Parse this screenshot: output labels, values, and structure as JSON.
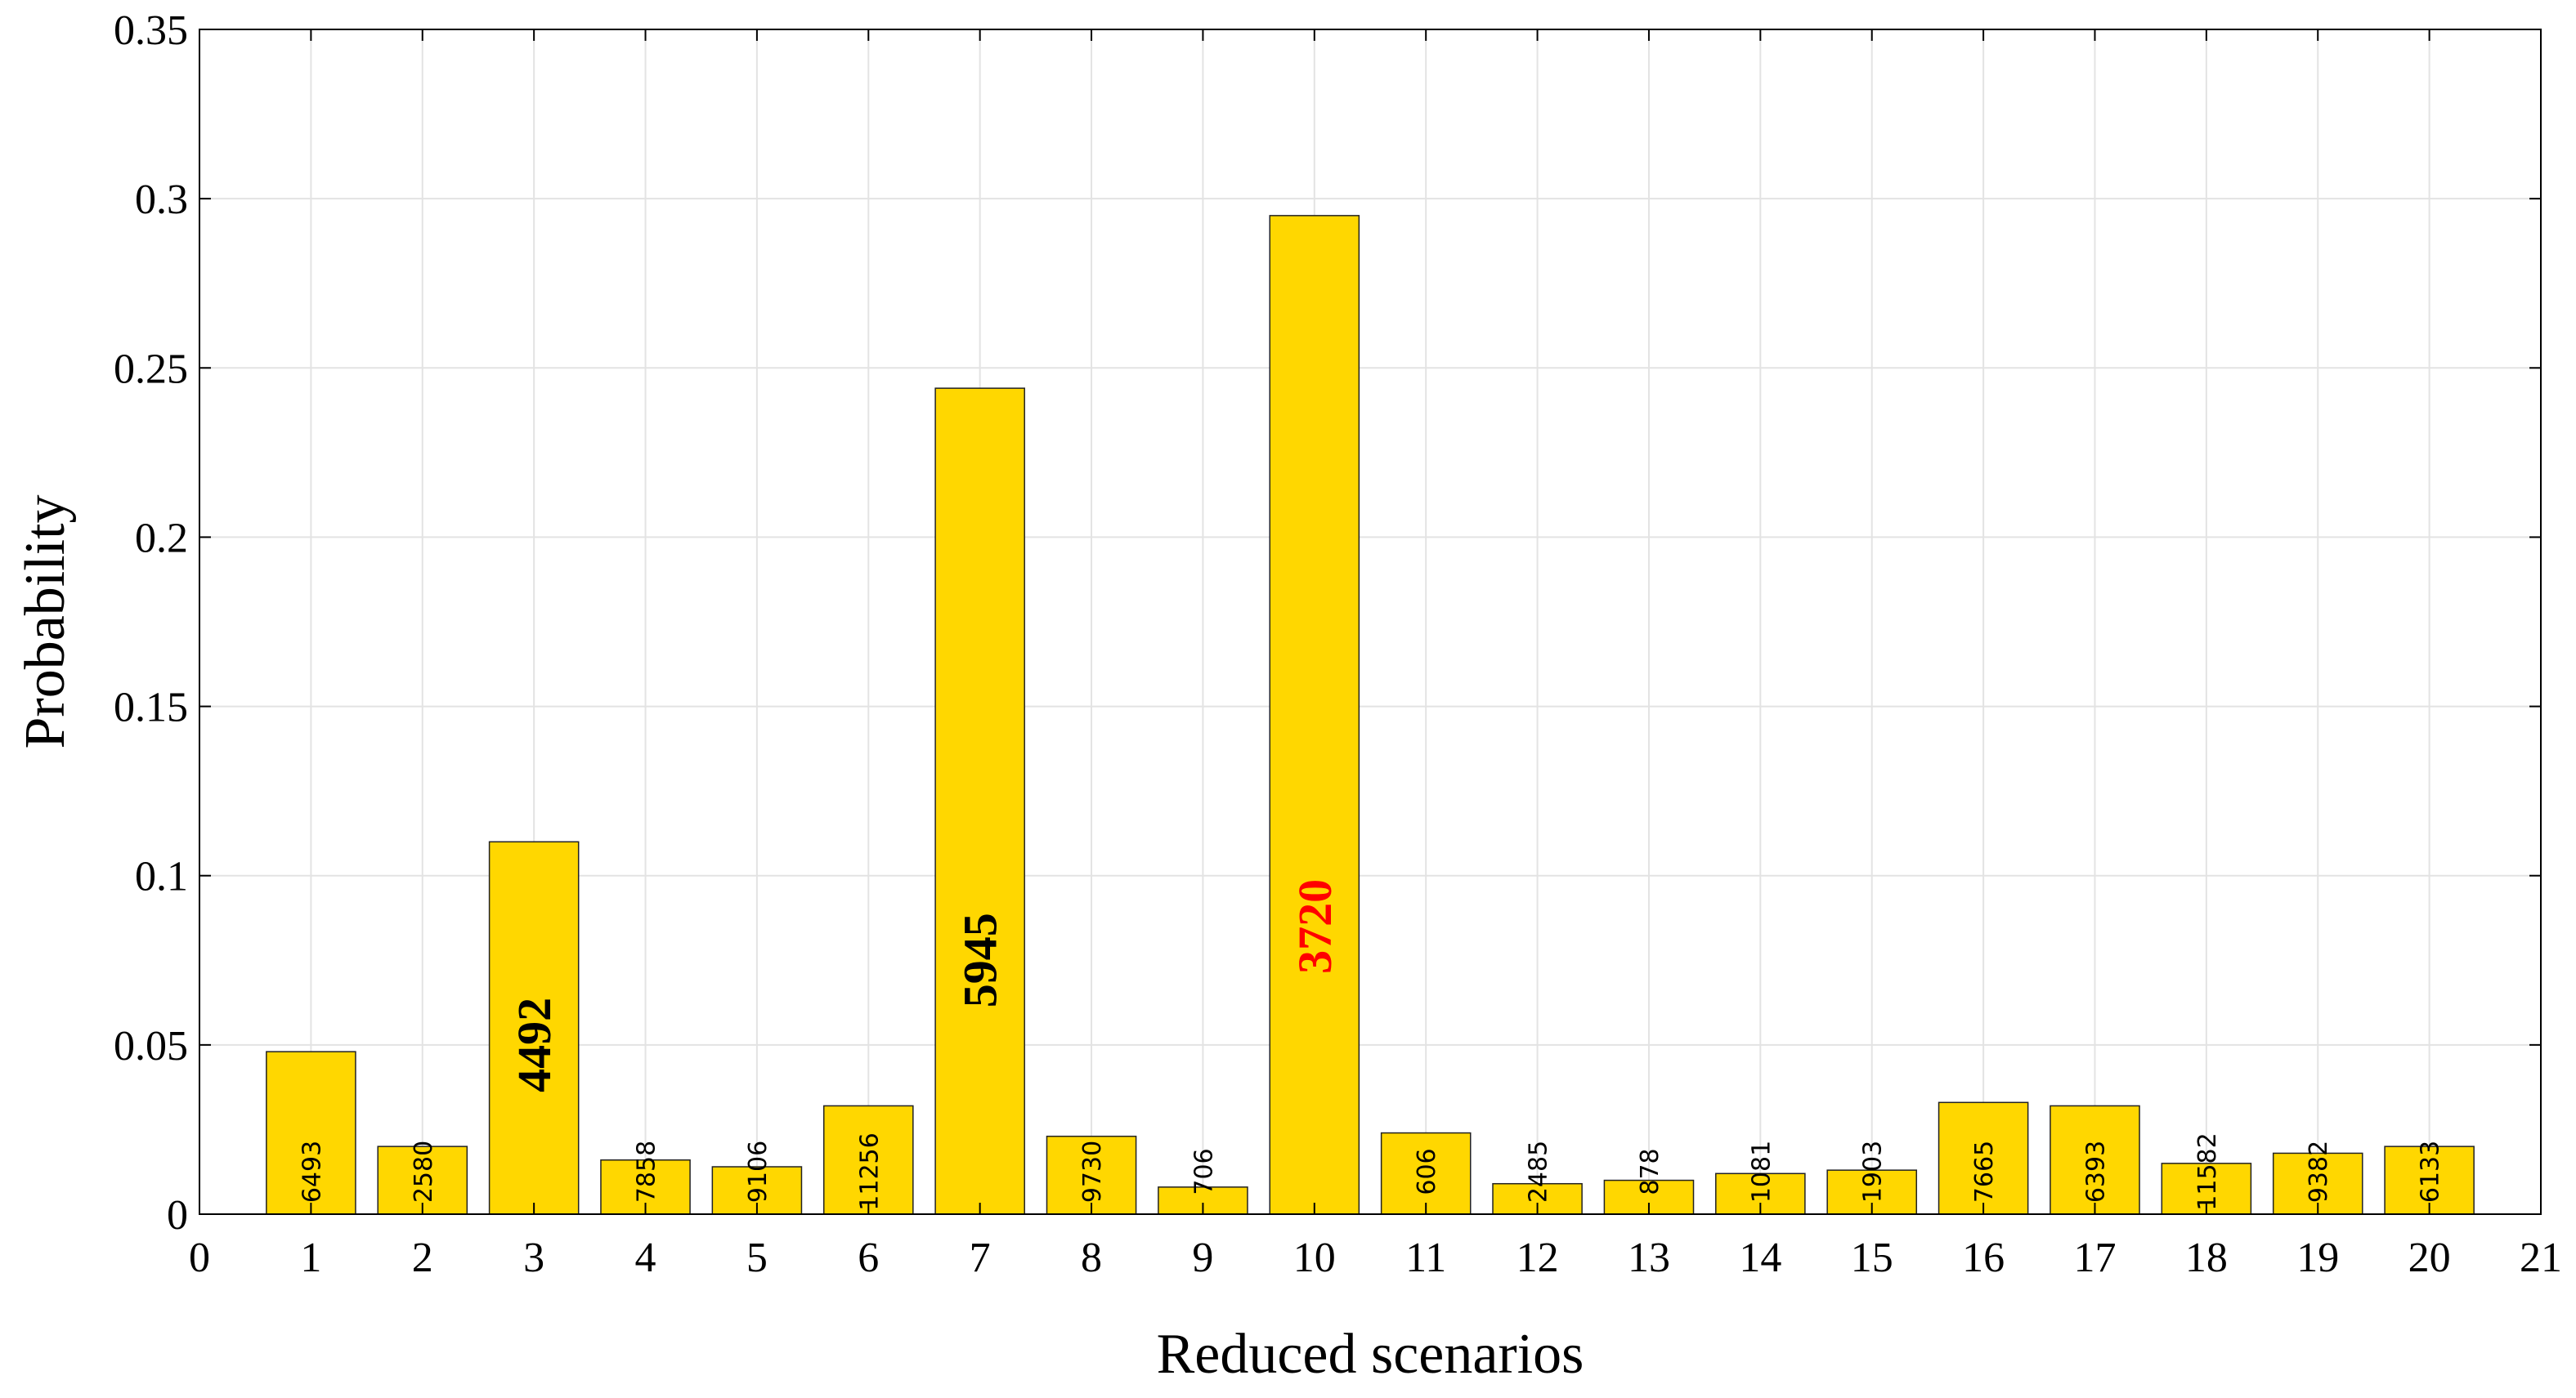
{
  "chart_data": {
    "type": "bar",
    "xlabel": "Reduced scenarios",
    "ylabel": "Probability",
    "xlim": [
      0,
      21
    ],
    "ylim": [
      0,
      0.35
    ],
    "xticks": [
      "0",
      "1",
      "2",
      "3",
      "4",
      "5",
      "6",
      "7",
      "8",
      "9",
      "10",
      "11",
      "12",
      "13",
      "14",
      "15",
      "16",
      "17",
      "18",
      "19",
      "20",
      "21"
    ],
    "yticks": [
      "0",
      "0.05",
      "0.1",
      "0.15",
      "0.2",
      "0.25",
      "0.3",
      "0.35"
    ],
    "grid": true,
    "categories": [
      1,
      2,
      3,
      4,
      5,
      6,
      7,
      8,
      9,
      10,
      11,
      12,
      13,
      14,
      15,
      16,
      17,
      18,
      19,
      20
    ],
    "values": [
      0.048,
      0.02,
      0.11,
      0.016,
      0.014,
      0.032,
      0.244,
      0.023,
      0.008,
      0.295,
      0.024,
      0.009,
      0.01,
      0.012,
      0.013,
      0.033,
      0.032,
      0.015,
      0.018,
      0.02
    ],
    "bar_labels": [
      "6493",
      "2580",
      "4492",
      "7858",
      "9106",
      "11256",
      "5945",
      "9730",
      "706",
      "3720",
      "606",
      "2485",
      "878",
      "1081",
      "1903",
      "7665",
      "6393",
      "11582",
      "9382",
      "6133"
    ],
    "highlighted_labels": {
      "3": "#000000",
      "7": "#000000",
      "10": "#ff0000"
    },
    "colors": {
      "bar": "#ffd700",
      "bar_edge": "#222222",
      "grid": "#e3e3e3"
    }
  }
}
